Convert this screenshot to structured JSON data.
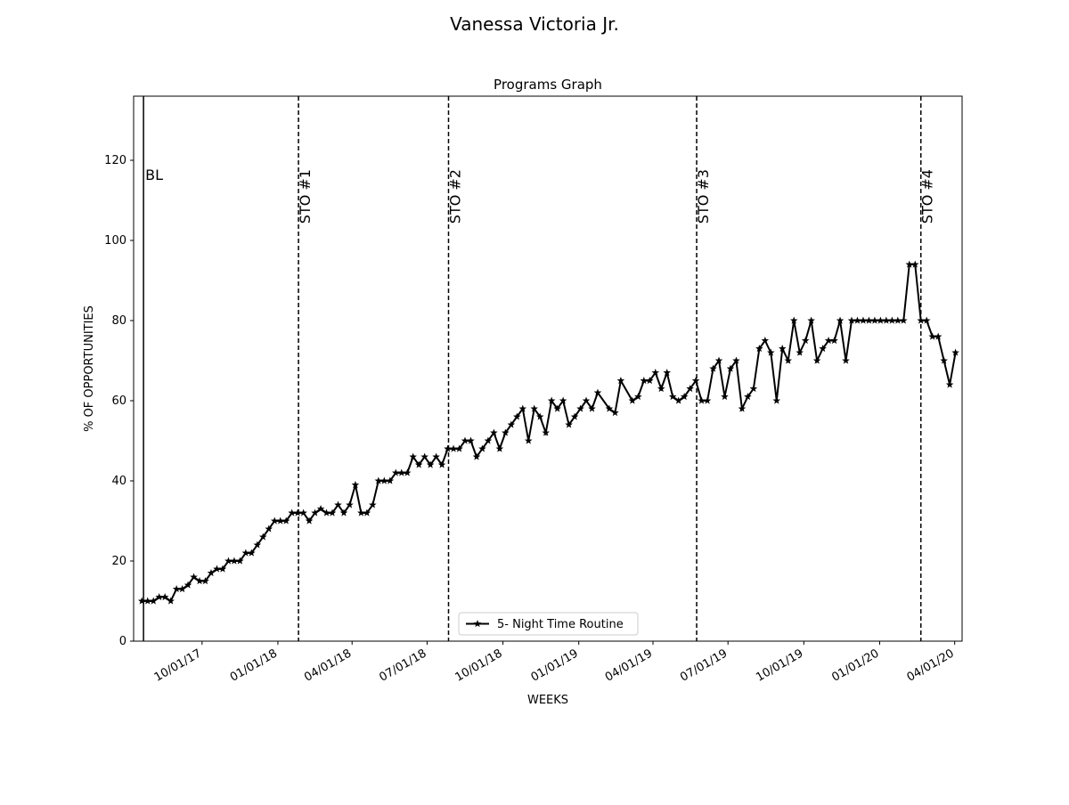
{
  "suptitle": "Vanessa Victoria  Jr.",
  "chart_data": {
    "type": "line",
    "title": "Programs Graph",
    "x_label": "WEEKS",
    "y_label": "% OF OPPORTUNITIES",
    "xlim": [
      "2017-07-10",
      "2020-04-10"
    ],
    "ylim": [
      0,
      136
    ],
    "yticks": [
      0,
      20,
      40,
      60,
      80,
      100,
      120
    ],
    "xticks": [
      {
        "value": "2017-10-01",
        "label": "10/01/17"
      },
      {
        "value": "2018-01-01",
        "label": "01/01/18"
      },
      {
        "value": "2018-04-01",
        "label": "04/01/18"
      },
      {
        "value": "2018-07-01",
        "label": "07/01/18"
      },
      {
        "value": "2018-10-01",
        "label": "10/01/18"
      },
      {
        "value": "2019-01-01",
        "label": "01/01/19"
      },
      {
        "value": "2019-04-01",
        "label": "04/01/19"
      },
      {
        "value": "2019-07-01",
        "label": "07/01/19"
      },
      {
        "value": "2019-10-01",
        "label": "10/01/19"
      },
      {
        "value": "2020-01-01",
        "label": "01/01/20"
      },
      {
        "value": "2020-04-01",
        "label": "04/01/20"
      }
    ],
    "phase_lines": [
      {
        "x": "2017-07-22",
        "label": "BL",
        "style": "solid"
      },
      {
        "x": "2018-01-26",
        "label": "STO #1",
        "style": "dashed"
      },
      {
        "x": "2018-07-27",
        "label": "STO #2",
        "style": "dashed"
      },
      {
        "x": "2019-05-24",
        "label": "STO #3",
        "style": "dashed"
      },
      {
        "x": "2020-02-20",
        "label": "STO #4",
        "style": "dashed"
      }
    ],
    "legend": "lower center",
    "x": [
      "2017-07-20",
      "2017-07-27",
      "2017-08-03",
      "2017-08-10",
      "2017-08-17",
      "2017-08-24",
      "2017-08-31",
      "2017-09-07",
      "2017-09-14",
      "2017-09-21",
      "2017-09-28",
      "2017-10-05",
      "2017-10-12",
      "2017-10-19",
      "2017-10-26",
      "2017-11-02",
      "2017-11-09",
      "2017-11-16",
      "2017-11-23",
      "2017-11-30",
      "2017-12-07",
      "2017-12-14",
      "2017-12-21",
      "2017-12-28",
      "2018-01-04",
      "2018-01-11",
      "2018-01-18",
      "2018-01-25",
      "2018-02-01",
      "2018-02-08",
      "2018-02-15",
      "2018-02-22",
      "2018-03-01",
      "2018-03-08",
      "2018-03-15",
      "2018-03-22",
      "2018-03-29",
      "2018-04-05",
      "2018-04-12",
      "2018-04-19",
      "2018-04-26",
      "2018-05-03",
      "2018-05-10",
      "2018-05-17",
      "2018-05-24",
      "2018-05-31",
      "2018-06-07",
      "2018-06-14",
      "2018-06-21",
      "2018-06-28",
      "2018-07-05",
      "2018-07-12",
      "2018-07-19",
      "2018-07-26",
      "2018-08-02",
      "2018-08-09",
      "2018-08-16",
      "2018-08-23",
      "2018-08-30",
      "2018-09-06",
      "2018-09-13",
      "2018-09-20",
      "2018-09-27",
      "2018-10-04",
      "2018-10-11",
      "2018-10-18",
      "2018-10-25",
      "2018-11-01",
      "2018-11-08",
      "2018-11-15",
      "2018-11-22",
      "2018-11-29",
      "2018-12-06",
      "2018-12-13",
      "2018-12-20",
      "2018-12-27",
      "2019-01-03",
      "2019-01-10",
      "2019-01-17",
      "2019-01-24",
      "2019-02-07",
      "2019-02-14",
      "2019-02-21",
      "2019-03-07",
      "2019-03-14",
      "2019-03-21",
      "2019-03-28",
      "2019-04-04",
      "2019-04-11",
      "2019-04-18",
      "2019-04-25",
      "2019-05-02",
      "2019-05-09",
      "2019-05-16",
      "2019-05-23",
      "2019-05-30",
      "2019-06-06",
      "2019-06-13",
      "2019-06-20",
      "2019-06-27",
      "2019-07-04",
      "2019-07-11",
      "2019-07-18",
      "2019-07-25",
      "2019-08-01",
      "2019-08-08",
      "2019-08-15",
      "2019-08-22",
      "2019-08-29",
      "2019-09-05",
      "2019-09-12",
      "2019-09-19",
      "2019-09-26",
      "2019-10-03",
      "2019-10-10",
      "2019-10-17",
      "2019-10-24",
      "2019-10-31",
      "2019-11-07",
      "2019-11-14",
      "2019-11-21",
      "2019-11-28",
      "2019-12-05",
      "2019-12-12",
      "2019-12-19",
      "2019-12-26",
      "2020-01-02",
      "2020-01-09",
      "2020-01-16",
      "2020-01-23",
      "2020-01-30",
      "2020-02-06",
      "2020-02-13",
      "2020-02-20",
      "2020-02-27",
      "2020-03-05",
      "2020-03-12",
      "2020-03-19",
      "2020-03-26",
      "2020-04-02"
    ],
    "series": [
      {
        "name": "5- Night Time Routine",
        "color": "#000000",
        "marker": "star",
        "values": [
          10,
          10,
          10,
          11,
          11,
          10,
          13,
          13,
          14,
          16,
          15,
          15,
          17,
          18,
          18,
          20,
          20,
          20,
          22,
          22,
          24,
          26,
          28,
          30,
          30,
          30,
          32,
          32,
          32,
          30,
          32,
          33,
          32,
          32,
          34,
          32,
          34,
          39,
          32,
          32,
          34,
          40,
          40,
          40,
          42,
          42,
          42,
          46,
          44,
          46,
          44,
          46,
          44,
          48,
          48,
          48,
          50,
          50,
          46,
          48,
          50,
          52,
          48,
          52,
          54,
          56,
          58,
          50,
          58,
          56,
          52,
          60,
          58,
          60,
          54,
          56,
          58,
          60,
          58,
          62,
          58,
          57,
          65,
          60,
          61,
          65,
          65,
          67,
          63,
          67,
          61,
          60,
          61,
          63,
          65,
          60,
          60,
          68,
          70,
          61,
          68,
          70,
          58,
          61,
          63,
          73,
          75,
          72,
          60,
          73,
          70,
          80,
          72,
          75,
          80,
          70,
          73,
          75,
          75,
          80,
          70,
          80,
          80,
          80,
          80,
          80,
          80,
          80,
          80,
          80,
          80,
          94,
          94,
          80,
          80,
          76,
          76,
          70,
          64,
          72
        ]
      }
    ]
  }
}
